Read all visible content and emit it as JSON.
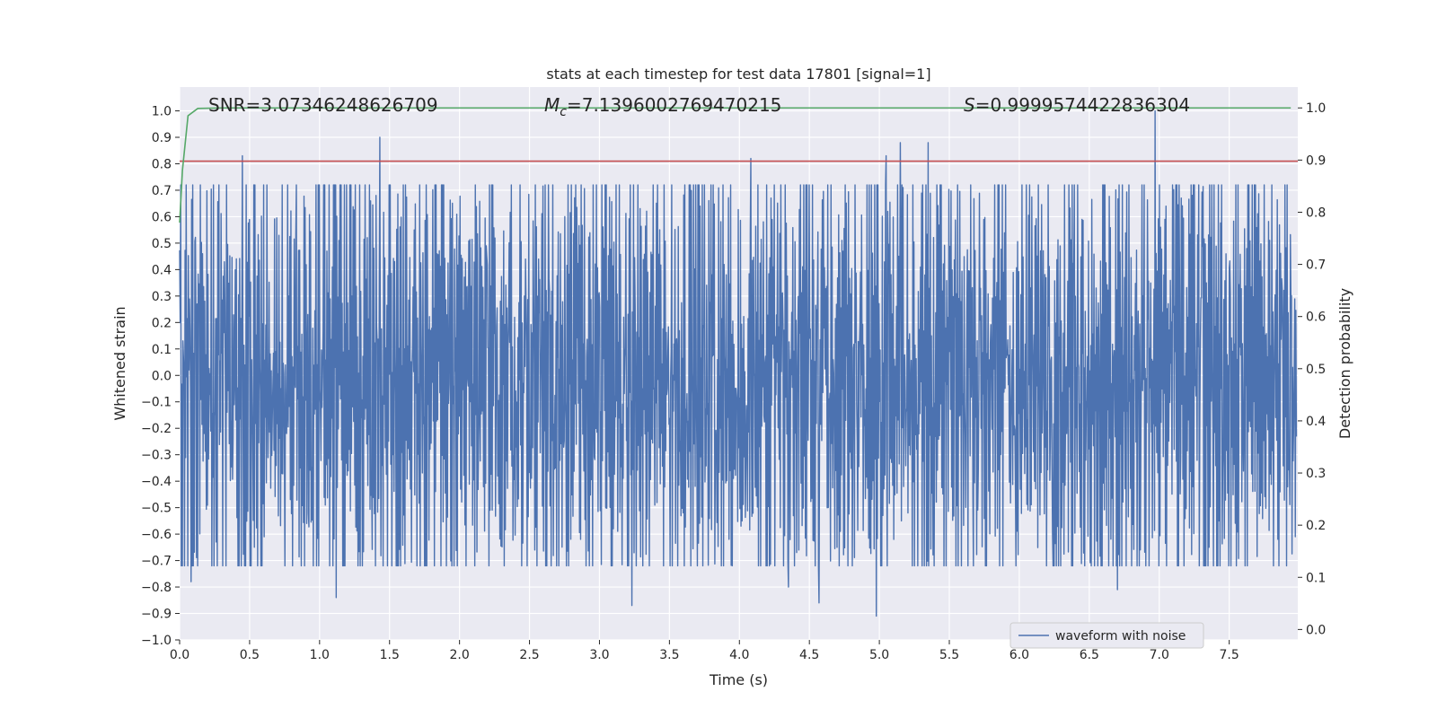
{
  "chart_data": {
    "type": "line",
    "title": "stats at each timestep for test data 17801 [signal=1]",
    "xlabel": "Time (s)",
    "ylabel": "Whitened strain",
    "ylabel_right": "Detection probability",
    "xlim": [
      0.0,
      7.99
    ],
    "ylim": [
      -1.0,
      1.09
    ],
    "ylim_right": [
      -0.02,
      1.04
    ],
    "x_ticks": [
      0.0,
      0.5,
      1.0,
      1.5,
      2.0,
      2.5,
      3.0,
      3.5,
      4.0,
      4.5,
      5.0,
      5.5,
      6.0,
      6.5,
      7.0,
      7.5
    ],
    "x_tick_labels": [
      "0.0",
      "0.5",
      "1.0",
      "1.5",
      "2.0",
      "2.5",
      "3.0",
      "3.5",
      "4.0",
      "4.5",
      "5.0",
      "5.5",
      "6.0",
      "6.5",
      "7.0",
      "7.5"
    ],
    "y_ticks": [
      -1.0,
      -0.9,
      -0.8,
      -0.7,
      -0.6,
      -0.5,
      -0.4,
      -0.3,
      -0.2,
      -0.1,
      0.0,
      0.1,
      0.2,
      0.3,
      0.4,
      0.5,
      0.6,
      0.7,
      0.8,
      0.9,
      1.0
    ],
    "y_tick_labels": [
      "−1.0",
      "−0.9",
      "−0.8",
      "−0.7",
      "−0.6",
      "−0.5",
      "−0.4",
      "−0.3",
      "−0.2",
      "−0.1",
      "0.0",
      "0.1",
      "0.2",
      "0.3",
      "0.4",
      "0.5",
      "0.6",
      "0.7",
      "0.8",
      "0.9",
      "1.0"
    ],
    "y_right_ticks": [
      0.0,
      0.1,
      0.2,
      0.3,
      0.4,
      0.5,
      0.6,
      0.7,
      0.8,
      0.9,
      1.0
    ],
    "y_right_tick_labels": [
      "0.0",
      "0.1",
      "0.2",
      "0.3",
      "0.4",
      "0.5",
      "0.6",
      "0.7",
      "0.8",
      "0.9",
      "1.0"
    ],
    "grid": true,
    "legend_position": "bottom-right",
    "annotations": {
      "snr": "SNR=3.07346248626709",
      "mc_symbol": "M",
      "mc_sub": "c",
      "mc_value": "=7.1396002769470215",
      "s_symbol": "S",
      "s_value": "=0.9999574422836304"
    },
    "series": [
      {
        "name": "waveform with noise",
        "axis": "left",
        "color": "#4c72b0",
        "kind": "noisy-waveform",
        "sample_count": 2048,
        "typical_envelope": 0.6,
        "notable_peaks": [
          {
            "x": 0.45,
            "y": 0.83
          },
          {
            "x": 1.43,
            "y": 0.9
          },
          {
            "x": 4.08,
            "y": 0.82
          },
          {
            "x": 5.05,
            "y": 0.83
          },
          {
            "x": 5.15,
            "y": 0.88
          },
          {
            "x": 5.35,
            "y": 0.88
          },
          {
            "x": 6.97,
            "y": 1.0
          }
        ],
        "notable_troughs": [
          {
            "x": 0.08,
            "y": -0.78
          },
          {
            "x": 1.12,
            "y": -0.84
          },
          {
            "x": 3.23,
            "y": -0.87
          },
          {
            "x": 4.35,
            "y": -0.8
          },
          {
            "x": 4.57,
            "y": -0.86
          },
          {
            "x": 4.98,
            "y": -0.91
          },
          {
            "x": 6.7,
            "y": -0.81
          }
        ]
      },
      {
        "name": "",
        "axis": "right",
        "color": "#55a868",
        "kind": "detection-probability",
        "x": [
          0.0,
          0.02,
          0.06,
          0.13,
          0.3,
          2.0,
          4.0,
          6.0,
          7.94
        ],
        "y": [
          0.78,
          0.88,
          0.985,
          0.999,
          1.0,
          1.0,
          1.0,
          1.0,
          1.0
        ]
      },
      {
        "name": "",
        "axis": "left",
        "color": "#c44e52",
        "kind": "threshold",
        "x": [
          0.0,
          7.99
        ],
        "y": [
          0.81,
          0.81
        ]
      }
    ]
  }
}
